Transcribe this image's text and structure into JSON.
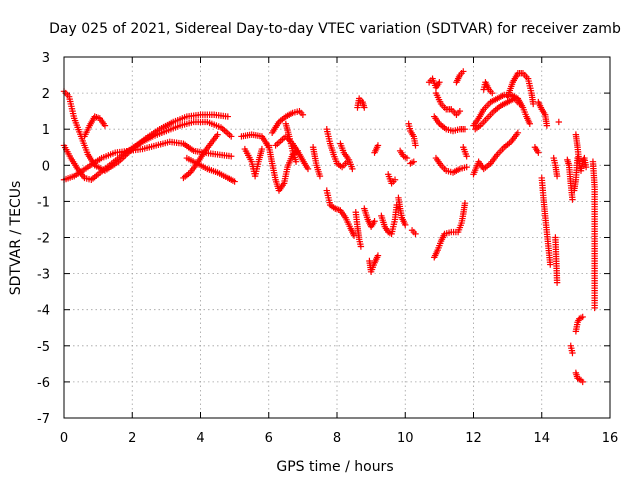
{
  "chart_data": {
    "type": "scatter",
    "title": "Day 025 of 2021, Sidereal Day-to-day VTEC variation (SDTVAR) for receiver zamb",
    "xlabel": "GPS time / hours",
    "ylabel": "SDTVAR / TECUs",
    "xlim": [
      0,
      16
    ],
    "ylim": [
      -7,
      3
    ],
    "xticks": [
      "0",
      "2",
      "4",
      "6",
      "8",
      "10",
      "12",
      "14",
      "16"
    ],
    "yticks": [
      "-7",
      "-6",
      "-5",
      "-4",
      "-3",
      "-2",
      "-1",
      "0",
      "1",
      "2",
      "3"
    ],
    "grid": true,
    "marker": "+",
    "color": "#ff0000",
    "tracks": [
      [
        [
          0.0,
          2.05
        ],
        [
          0.15,
          1.9
        ],
        [
          0.3,
          1.3
        ],
        [
          0.5,
          0.8
        ],
        [
          0.7,
          0.3
        ],
        [
          0.9,
          0.0
        ],
        [
          1.2,
          -0.15
        ],
        [
          1.6,
          0.1
        ],
        [
          2.0,
          0.45
        ],
        [
          2.4,
          0.75
        ],
        [
          2.8,
          1.0
        ],
        [
          3.2,
          1.2
        ],
        [
          3.6,
          1.35
        ],
        [
          4.0,
          1.4
        ],
        [
          4.4,
          1.4
        ],
        [
          4.8,
          1.35
        ]
      ],
      [
        [
          0.0,
          0.55
        ],
        [
          0.2,
          0.2
        ],
        [
          0.4,
          -0.1
        ],
        [
          0.6,
          -0.35
        ],
        [
          0.8,
          -0.4
        ],
        [
          1.0,
          -0.25
        ],
        [
          1.4,
          0.05
        ],
        [
          1.8,
          0.35
        ],
        [
          2.2,
          0.6
        ],
        [
          2.6,
          0.8
        ],
        [
          3.0,
          0.95
        ],
        [
          3.4,
          1.1
        ],
        [
          3.8,
          1.2
        ],
        [
          4.2,
          1.2
        ],
        [
          4.6,
          1.05
        ],
        [
          4.9,
          0.8
        ]
      ],
      [
        [
          0.0,
          -0.4
        ],
        [
          0.3,
          -0.3
        ],
        [
          0.7,
          -0.05
        ],
        [
          1.1,
          0.2
        ],
        [
          1.5,
          0.35
        ],
        [
          1.9,
          0.4
        ],
        [
          2.3,
          0.45
        ],
        [
          2.7,
          0.55
        ],
        [
          3.1,
          0.65
        ],
        [
          3.5,
          0.6
        ],
        [
          3.8,
          0.4
        ],
        [
          4.1,
          0.35
        ],
        [
          4.5,
          0.3
        ],
        [
          4.9,
          0.25
        ]
      ],
      [
        [
          0.6,
          0.8
        ],
        [
          0.75,
          1.1
        ],
        [
          0.9,
          1.35
        ],
        [
          1.05,
          1.3
        ],
        [
          1.2,
          1.1
        ]
      ],
      [
        [
          3.5,
          -0.35
        ],
        [
          3.7,
          -0.2
        ],
        [
          3.9,
          0.05
        ],
        [
          4.1,
          0.35
        ],
        [
          4.3,
          0.6
        ],
        [
          4.5,
          0.85
        ]
      ],
      [
        [
          3.6,
          0.2
        ],
        [
          3.9,
          0.05
        ],
        [
          4.2,
          -0.1
        ],
        [
          4.5,
          -0.2
        ],
        [
          4.8,
          -0.35
        ],
        [
          5.0,
          -0.45
        ]
      ],
      [
        [
          5.2,
          0.8
        ],
        [
          5.5,
          0.85
        ],
        [
          5.8,
          0.8
        ],
        [
          6.0,
          0.5
        ]
      ],
      [
        [
          5.3,
          0.45
        ],
        [
          5.5,
          0.1
        ],
        [
          5.6,
          -0.3
        ],
        [
          5.7,
          0.1
        ],
        [
          5.8,
          0.45
        ]
      ],
      [
        [
          6.0,
          0.55
        ],
        [
          6.1,
          0.05
        ],
        [
          6.2,
          -0.4
        ],
        [
          6.3,
          -0.7
        ],
        [
          6.45,
          -0.5
        ],
        [
          6.55,
          -0.05
        ],
        [
          6.7,
          0.3
        ],
        [
          6.85,
          0.4
        ]
      ],
      [
        [
          6.1,
          0.9
        ],
        [
          6.3,
          1.2
        ],
        [
          6.5,
          1.35
        ],
        [
          6.7,
          1.45
        ],
        [
          6.9,
          1.5
        ],
        [
          7.0,
          1.4
        ]
      ],
      [
        [
          6.2,
          0.55
        ],
        [
          6.5,
          0.8
        ],
        [
          6.7,
          0.6
        ],
        [
          6.9,
          0.3
        ],
        [
          7.05,
          0.05
        ],
        [
          7.15,
          -0.1
        ]
      ],
      [
        [
          6.5,
          1.15
        ],
        [
          6.6,
          0.8
        ],
        [
          6.7,
          0.4
        ],
        [
          6.8,
          0.1
        ]
      ],
      [
        [
          7.3,
          0.5
        ],
        [
          7.4,
          0.0
        ],
        [
          7.5,
          -0.3
        ]
      ],
      [
        [
          7.7,
          1.0
        ],
        [
          7.8,
          0.6
        ],
        [
          7.9,
          0.3
        ],
        [
          8.0,
          0.05
        ],
        [
          8.15,
          -0.05
        ],
        [
          8.3,
          0.1
        ]
      ],
      [
        [
          8.1,
          0.6
        ],
        [
          8.2,
          0.35
        ],
        [
          8.35,
          0.15
        ],
        [
          8.45,
          -0.1
        ]
      ],
      [
        [
          7.7,
          -0.7
        ],
        [
          7.8,
          -1.1
        ],
        [
          7.95,
          -1.2
        ],
        [
          8.1,
          -1.25
        ],
        [
          8.25,
          -1.45
        ],
        [
          8.4,
          -1.75
        ],
        [
          8.5,
          -1.95
        ]
      ],
      [
        [
          8.55,
          -1.3
        ],
        [
          8.6,
          -1.7
        ],
        [
          8.65,
          -2.05
        ],
        [
          8.7,
          -2.25
        ]
      ],
      [
        [
          8.6,
          1.6
        ],
        [
          8.65,
          1.85
        ],
        [
          8.75,
          1.75
        ],
        [
          8.8,
          1.6
        ]
      ],
      [
        [
          8.8,
          -1.2
        ],
        [
          8.9,
          -1.5
        ],
        [
          9.0,
          -1.7
        ],
        [
          9.1,
          -1.55
        ]
      ],
      [
        [
          8.95,
          -2.65
        ],
        [
          9.0,
          -2.95
        ],
        [
          9.1,
          -2.7
        ],
        [
          9.2,
          -2.5
        ]
      ],
      [
        [
          9.1,
          0.35
        ],
        [
          9.2,
          0.55
        ]
      ],
      [
        [
          9.3,
          -1.4
        ],
        [
          9.4,
          -1.7
        ],
        [
          9.5,
          -1.85
        ],
        [
          9.6,
          -1.9
        ],
        [
          9.7,
          -1.5
        ],
        [
          9.75,
          -1.1
        ]
      ],
      [
        [
          9.5,
          -0.25
        ],
        [
          9.6,
          -0.5
        ],
        [
          9.7,
          -0.4
        ]
      ],
      [
        [
          9.8,
          -0.9
        ],
        [
          9.85,
          -1.2
        ],
        [
          9.9,
          -1.45
        ],
        [
          10.0,
          -1.65
        ]
      ],
      [
        [
          9.85,
          0.4
        ],
        [
          9.95,
          0.25
        ],
        [
          10.05,
          0.2
        ]
      ],
      [
        [
          10.1,
          1.15
        ],
        [
          10.15,
          0.95
        ],
        [
          10.25,
          0.8
        ],
        [
          10.3,
          0.55
        ]
      ],
      [
        [
          10.15,
          0.05
        ],
        [
          10.25,
          0.1
        ]
      ],
      [
        [
          10.2,
          -1.8
        ],
        [
          10.3,
          -1.9
        ]
      ],
      [
        [
          10.7,
          2.3
        ],
        [
          10.8,
          2.4
        ],
        [
          10.9,
          2.15
        ],
        [
          11.0,
          2.3
        ]
      ],
      [
        [
          10.85,
          1.35
        ],
        [
          11.0,
          1.15
        ],
        [
          11.2,
          1.0
        ],
        [
          11.4,
          0.95
        ],
        [
          11.6,
          1.0
        ],
        [
          11.75,
          1.0
        ]
      ],
      [
        [
          10.9,
          2.0
        ],
        [
          11.05,
          1.7
        ],
        [
          11.2,
          1.55
        ],
        [
          11.35,
          1.55
        ],
        [
          11.5,
          1.4
        ],
        [
          11.6,
          1.5
        ]
      ],
      [
        [
          10.9,
          0.2
        ],
        [
          11.05,
          0.0
        ],
        [
          11.2,
          -0.15
        ],
        [
          11.4,
          -0.2
        ],
        [
          11.6,
          -0.1
        ],
        [
          11.8,
          -0.05
        ]
      ],
      [
        [
          10.85,
          -2.55
        ],
        [
          10.95,
          -2.35
        ],
        [
          11.05,
          -2.1
        ],
        [
          11.15,
          -1.9
        ],
        [
          11.35,
          -1.85
        ],
        [
          11.55,
          -1.85
        ],
        [
          11.65,
          -1.6
        ],
        [
          11.7,
          -1.35
        ],
        [
          11.75,
          -1.05
        ]
      ],
      [
        [
          11.5,
          2.3
        ],
        [
          11.6,
          2.5
        ],
        [
          11.7,
          2.6
        ]
      ],
      [
        [
          11.7,
          0.5
        ],
        [
          11.8,
          0.25
        ]
      ],
      [
        [
          12.0,
          1.1
        ],
        [
          12.15,
          1.3
        ],
        [
          12.3,
          1.55
        ],
        [
          12.5,
          1.75
        ],
        [
          12.7,
          1.85
        ],
        [
          12.9,
          1.95
        ],
        [
          13.1,
          1.95
        ],
        [
          13.3,
          1.85
        ],
        [
          13.45,
          1.6
        ],
        [
          13.55,
          1.35
        ],
        [
          13.65,
          1.15
        ]
      ],
      [
        [
          12.05,
          1.0
        ],
        [
          12.2,
          1.1
        ],
        [
          12.4,
          1.3
        ],
        [
          12.6,
          1.5
        ],
        [
          12.8,
          1.65
        ],
        [
          13.0,
          1.75
        ],
        [
          13.2,
          1.85
        ],
        [
          13.35,
          1.7
        ]
      ],
      [
        [
          12.0,
          -0.25
        ],
        [
          12.15,
          0.1
        ],
        [
          12.3,
          -0.1
        ],
        [
          12.5,
          0.05
        ],
        [
          12.7,
          0.3
        ],
        [
          12.9,
          0.5
        ],
        [
          13.1,
          0.65
        ],
        [
          13.3,
          0.9
        ]
      ],
      [
        [
          12.3,
          2.1
        ],
        [
          12.35,
          2.3
        ],
        [
          12.45,
          2.1
        ],
        [
          12.55,
          2.0
        ]
      ],
      [
        [
          13.0,
          1.9
        ],
        [
          13.15,
          2.3
        ],
        [
          13.3,
          2.55
        ],
        [
          13.45,
          2.55
        ],
        [
          13.6,
          2.4
        ],
        [
          13.7,
          2.0
        ],
        [
          13.75,
          1.7
        ]
      ],
      [
        [
          13.9,
          1.75
        ],
        [
          14.0,
          1.55
        ],
        [
          14.1,
          1.4
        ],
        [
          14.15,
          1.1
        ]
      ],
      [
        [
          13.8,
          0.5
        ],
        [
          13.9,
          0.35
        ]
      ],
      [
        [
          14.0,
          -0.35
        ],
        [
          14.05,
          -0.9
        ],
        [
          14.1,
          -1.4
        ],
        [
          14.15,
          -1.85
        ],
        [
          14.2,
          -2.3
        ],
        [
          14.25,
          -2.75
        ]
      ],
      [
        [
          14.35,
          0.2
        ],
        [
          14.4,
          0.0
        ],
        [
          14.45,
          -0.3
        ]
      ],
      [
        [
          14.4,
          -2.0
        ],
        [
          14.45,
          -3.25
        ]
      ],
      [
        [
          14.5,
          1.2
        ]
      ],
      [
        [
          14.75,
          0.15
        ],
        [
          14.8,
          0.0
        ],
        [
          14.85,
          -0.5
        ],
        [
          14.9,
          -0.95
        ]
      ],
      [
        [
          14.85,
          -5.0
        ],
        [
          14.9,
          -5.2
        ]
      ],
      [
        [
          14.95,
          -0.7
        ],
        [
          15.0,
          -0.4
        ],
        [
          15.05,
          0.2
        ]
      ],
      [
        [
          15.0,
          -5.75
        ],
        [
          15.05,
          -5.9
        ],
        [
          15.15,
          -5.95
        ],
        [
          15.2,
          -6.0
        ]
      ],
      [
        [
          15.0,
          -4.6
        ],
        [
          15.05,
          -4.35
        ],
        [
          15.1,
          -4.25
        ],
        [
          15.2,
          -4.2
        ]
      ],
      [
        [
          15.0,
          0.85
        ],
        [
          15.05,
          0.5
        ],
        [
          15.1,
          0.05
        ],
        [
          15.15,
          -0.15
        ],
        [
          15.2,
          0.1
        ],
        [
          15.25,
          0.2
        ],
        [
          15.3,
          -0.05
        ]
      ],
      [
        [
          15.5,
          0.1
        ],
        [
          15.55,
          -0.6
        ],
        [
          15.55,
          -3.95
        ]
      ]
    ]
  }
}
